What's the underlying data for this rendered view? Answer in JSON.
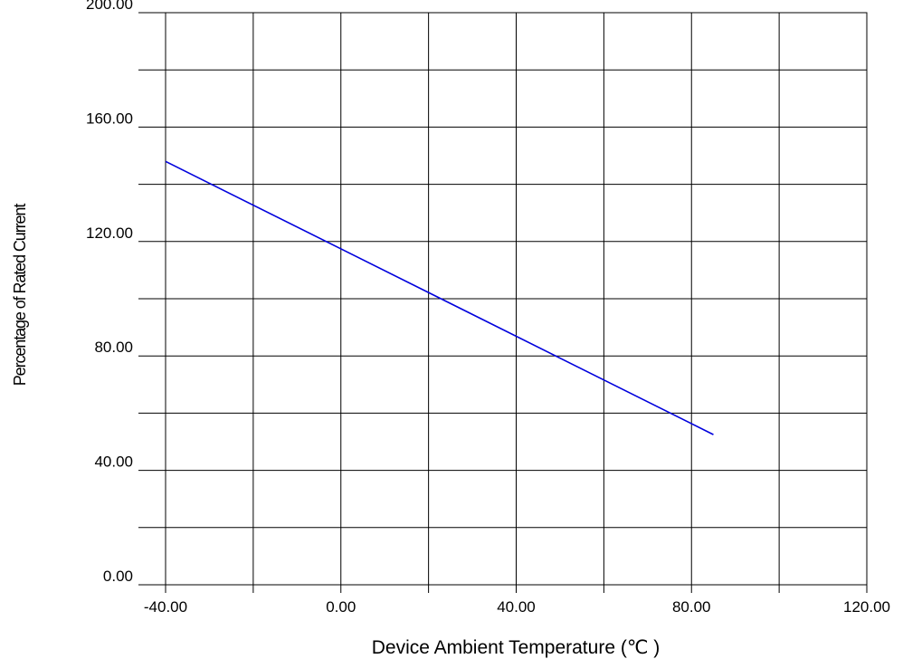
{
  "chart_data": {
    "type": "line",
    "title": "",
    "xlabel": "Device Ambient Temperature (℃ )",
    "ylabel": "Percentage of Rated Current",
    "xlim": [
      -40,
      120
    ],
    "ylim": [
      0,
      200
    ],
    "x_ticks": [
      -40,
      0,
      40,
      80,
      120
    ],
    "x_tick_labels": [
      "-40.00",
      "0.00",
      "40.00",
      "80.00",
      "120.00"
    ],
    "y_ticks": [
      0,
      40,
      80,
      120,
      160,
      200
    ],
    "y_tick_labels": [
      "0.00",
      "40.00",
      "80.00",
      "120.00",
      "160.00",
      "200.00"
    ],
    "x_minor_grid_step": 20,
    "y_minor_grid_step": 20,
    "grid": true,
    "legend": "none",
    "series": [
      {
        "color": "#0000dd",
        "x": [
          -40,
          85
        ],
        "y": [
          148,
          52.5
        ]
      }
    ]
  }
}
